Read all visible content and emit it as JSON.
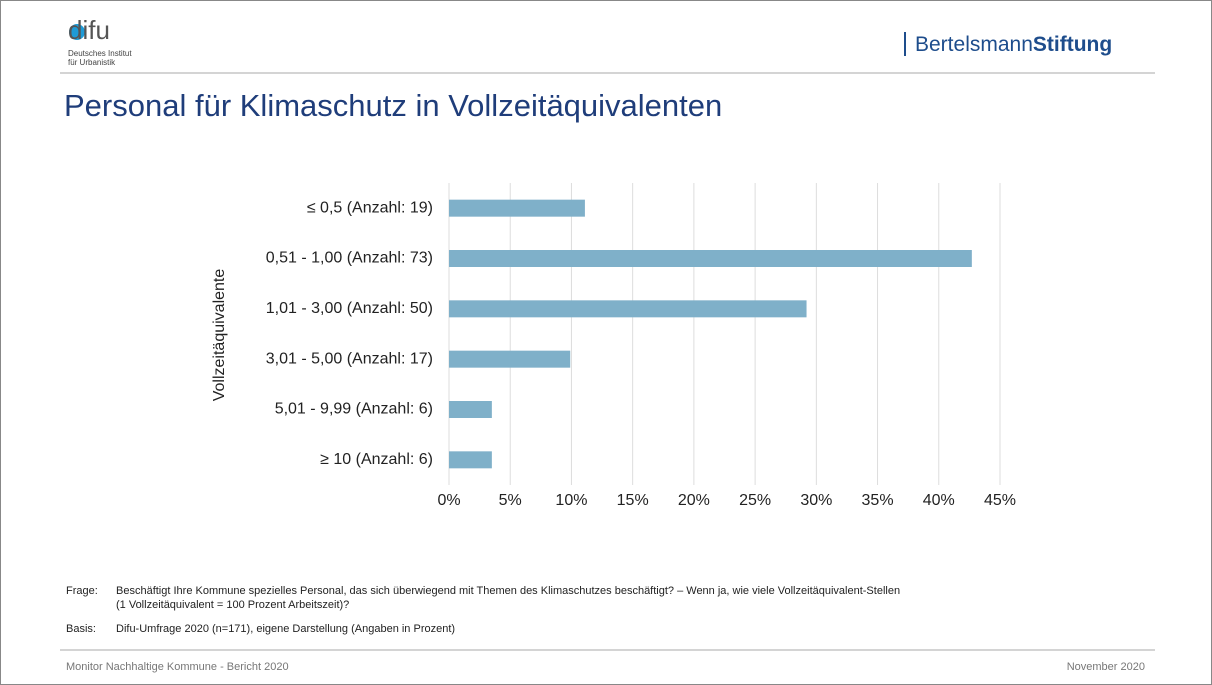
{
  "header": {
    "logo": "difu",
    "logo_line1": "Deutsches Institut",
    "logo_line2": "für Urbanistik",
    "brand_regular": "Bertelsmann",
    "brand_bold": "Stiftung"
  },
  "chart_data": {
    "type": "hbar",
    "title": "Personal für Klimaschutz in Vollzeitäquivalenten",
    "y_label": "Vollzeitäquivalente",
    "categories": [
      "≤ 0,5 (Anzahl: 19)",
      "0,51 - 1,00 (Anzahl: 73)",
      "1,01 - 3,00 (Anzahl: 50)",
      "3,01 - 5,00 (Anzahl: 17)",
      "5,01 - 9,99 (Anzahl: 6)",
      "≥ 10 (Anzahl: 6)"
    ],
    "values": [
      11.1,
      42.7,
      29.2,
      9.9,
      3.5,
      3.5
    ],
    "color": "#7fb0c9",
    "xlim": [
      0,
      45
    ],
    "xticks": [
      {
        "value": 0,
        "label": "0%"
      },
      {
        "value": 5,
        "label": "5%"
      },
      {
        "value": 10,
        "label": "10%"
      },
      {
        "value": 15,
        "label": "15%"
      },
      {
        "value": 20,
        "label": "20%"
      },
      {
        "value": 25,
        "label": "25%"
      },
      {
        "value": 30,
        "label": "30%"
      },
      {
        "value": 35,
        "label": "35%"
      },
      {
        "value": 40,
        "label": "40%"
      },
      {
        "value": 45,
        "label": "45%"
      }
    ],
    "grid": true
  },
  "notes": {
    "frage_label": "Frage:",
    "frage_line1": "Beschäftigt Ihre Kommune spezielles Personal, das sich überwiegend mit Themen des Klimaschutzes beschäftigt? – Wenn ja,  wie viele Vollzeitäquivalent-Stellen",
    "frage_line2": "(1 Vollzeitäquivalent = 100 Prozent Arbeitszeit)?",
    "basis_label": "Basis:",
    "basis_text": "Difu-Umfrage 2020 (n=171), eigene Darstellung (Angaben in Prozent)"
  },
  "footer": {
    "left": "Monitor Nachhaltige Kommune  - Bericht 2020",
    "right": "November 2020"
  }
}
